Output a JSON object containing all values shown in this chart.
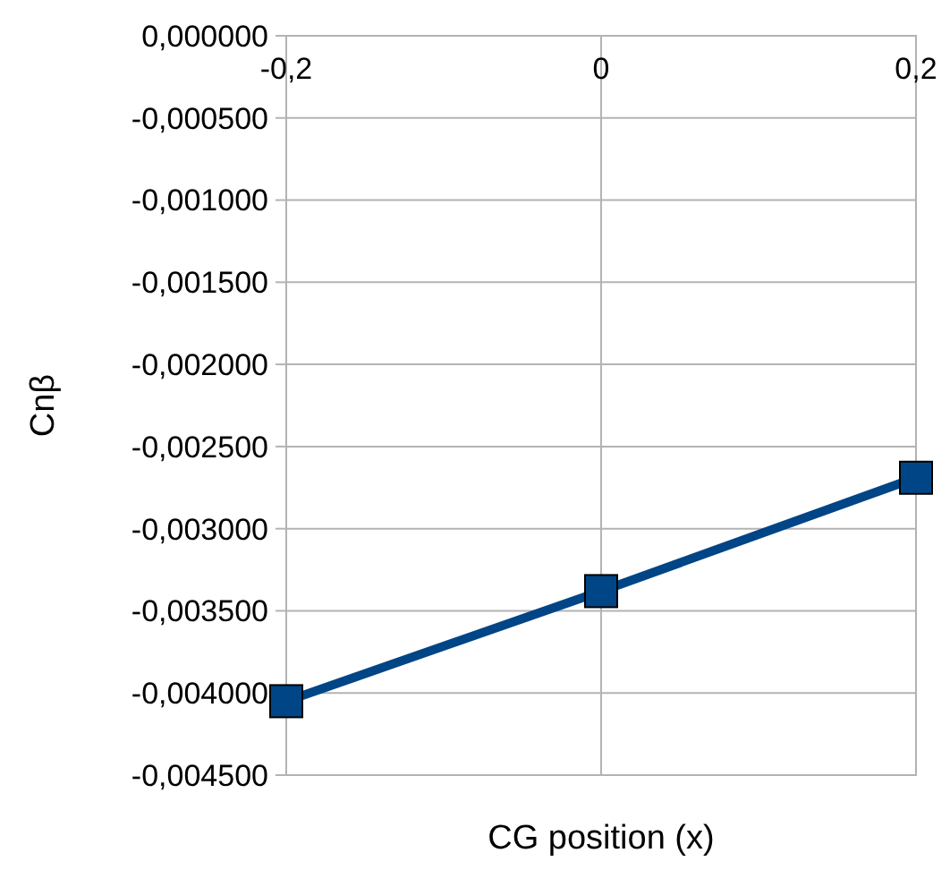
{
  "chart_data": {
    "type": "line",
    "xlabel": "CG position (x)",
    "ylabel": "Cnβ",
    "x": [
      -0.2,
      0,
      0.2
    ],
    "series": [
      {
        "color": "#004586",
        "values": [
          -0.00405,
          -0.00338,
          -0.00269
        ]
      }
    ],
    "xlim": [
      -0.2,
      0.2
    ],
    "xticks": [
      {
        "value": -0.2,
        "label": "-0,2"
      },
      {
        "value": 0,
        "label": "0"
      },
      {
        "value": 0.2,
        "label": "0,2"
      }
    ],
    "ylim": [
      -0.0045,
      0
    ],
    "yticks": [
      {
        "value": 0,
        "label": "0,000000"
      },
      {
        "value": -0.0005,
        "label": "-0,000500"
      },
      {
        "value": -0.001,
        "label": "-0,001000"
      },
      {
        "value": -0.0015,
        "label": "-0,001500"
      },
      {
        "value": -0.002,
        "label": "-0,002000"
      },
      {
        "value": -0.0025,
        "label": "-0,002500"
      },
      {
        "value": -0.003,
        "label": "-0,003000"
      },
      {
        "value": -0.0035,
        "label": "-0,003500"
      },
      {
        "value": -0.004,
        "label": "-0,004000"
      },
      {
        "value": -0.0045,
        "label": "-0,004500"
      }
    ],
    "grid": true,
    "marker": "square",
    "line_style": "solid"
  }
}
